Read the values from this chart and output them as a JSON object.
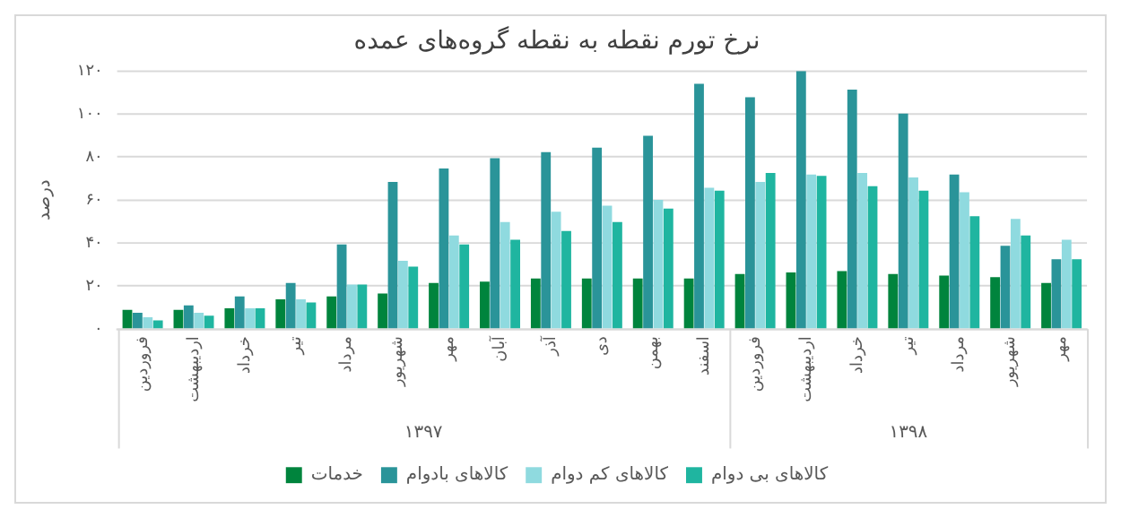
{
  "chart_data": {
    "type": "bar",
    "title": "نرخ تورم نقطه به نقطه گروه‌های عمده",
    "ylabel": "درصد",
    "categories": [
      "فروردین",
      "اردیبهشت",
      "خرداد",
      "تیر",
      "مرداد",
      "شهریور",
      "مهر",
      "آبان",
      "آذر",
      "دی",
      "بهمن",
      "اسفند",
      "فروردین",
      "اردیبهشت",
      "خرداد",
      "تیر",
      "مرداد",
      "شهریور",
      "مهر"
    ],
    "series": [
      {
        "name": "خدمات",
        "color": "#00843d",
        "values": [
          9,
          9,
          9.7,
          13.8,
          15.2,
          16.6,
          21.4,
          22.1,
          23.5,
          23.5,
          23.5,
          23.5,
          25.6,
          26.3,
          27,
          25.6,
          24.9,
          24.2,
          21.4
        ]
      },
      {
        "name": "کالاهای بادوام",
        "color": "#2a9499",
        "values": [
          7.6,
          11,
          15.2,
          21.4,
          39.4,
          68.4,
          74.7,
          79.5,
          82.3,
          84.3,
          89.9,
          114,
          107.8,
          120,
          111.3,
          100.2,
          71.9,
          38.7,
          32.5
        ]
      },
      {
        "name": "کالاهای کم دوام",
        "color": "#8fdadf",
        "values": [
          5.5,
          7.6,
          9.7,
          13.8,
          20.7,
          31.8,
          43.5,
          49.8,
          54.6,
          57.4,
          60.1,
          65.7,
          68.4,
          71.9,
          72.6,
          70.5,
          63.6,
          51.2,
          41.5
        ]
      },
      {
        "name": "کالاهای بی دوام",
        "color": "#1fb5a0",
        "values": [
          4.1,
          6.2,
          9.7,
          12.4,
          20.7,
          29,
          39.4,
          41.5,
          45.6,
          49.8,
          56,
          64.3,
          72.6,
          71.2,
          66.4,
          64.3,
          52.5,
          43.5,
          32.5
        ]
      }
    ],
    "annotations": [
      "۱۳۹۷",
      "۱۳۹۸"
    ],
    "ylim": [
      0,
      120
    ],
    "yticks": [
      {
        "value": 0,
        "label": "۰"
      },
      {
        "value": 20,
        "label": "۲۰"
      },
      {
        "value": 40,
        "label": "۴۰"
      },
      {
        "value": 60,
        "label": "۶۰"
      },
      {
        "value": 80,
        "label": "۸۰"
      },
      {
        "value": 100,
        "label": "۱۰۰"
      },
      {
        "value": 120,
        "label": "۱۲۰"
      }
    ],
    "grid": "y",
    "legend": "bottom"
  }
}
